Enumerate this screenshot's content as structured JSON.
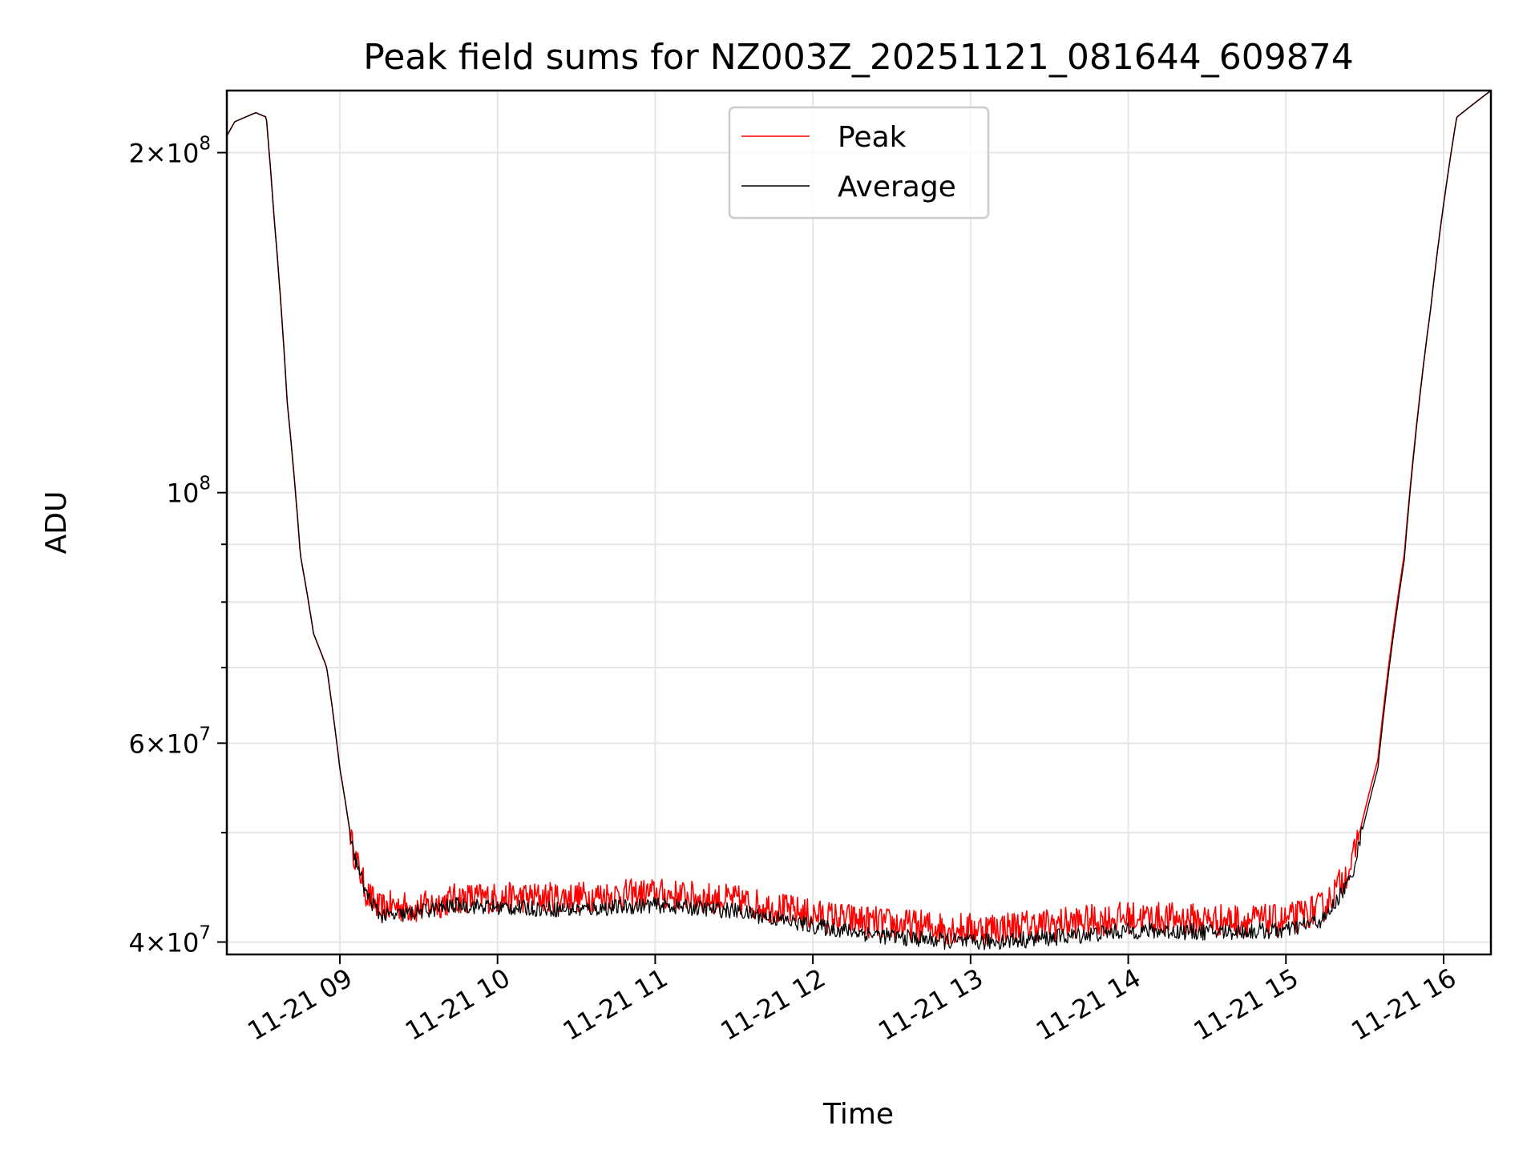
{
  "chart_data": {
    "type": "line",
    "title": "Peak field sums for NZ003Z_20251121_081644_609874",
    "xlabel": "Time",
    "ylabel": "ADU",
    "y_scale": "log",
    "grid": true,
    "legend_position": "upper center",
    "xlim": [
      "2025-11-21T08:17",
      "2025-11-21T16:18"
    ],
    "ylim": [
      39000000,
      227000000
    ],
    "x_ticks": [
      {
        "value": "2025-11-21T09:00",
        "label": "11-21 09"
      },
      {
        "value": "2025-11-21T10:00",
        "label": "11-21 10"
      },
      {
        "value": "2025-11-21T11:00",
        "label": "11-21 11"
      },
      {
        "value": "2025-11-21T12:00",
        "label": "11-21 12"
      },
      {
        "value": "2025-11-21T13:00",
        "label": "11-21 13"
      },
      {
        "value": "2025-11-21T14:00",
        "label": "11-21 14"
      },
      {
        "value": "2025-11-21T15:00",
        "label": "11-21 15"
      },
      {
        "value": "2025-11-21T16:00",
        "label": "11-21 16"
      }
    ],
    "y_ticks": [
      {
        "value": 40000000,
        "base": "4",
        "exp": "7",
        "mantissa": true
      },
      {
        "value": 60000000,
        "base": "6",
        "exp": "7",
        "mantissa": true
      },
      {
        "value": 100000000,
        "base": "10",
        "exp": "8",
        "mantissa": false
      },
      {
        "value": 200000000,
        "base": "2",
        "exp": "8",
        "mantissa": true
      }
    ],
    "y_minor_ticks": [
      50000000,
      70000000,
      80000000,
      90000000
    ],
    "series": [
      {
        "name": "Peak",
        "color": "#ff0000",
        "noise_amplitude": 1400000,
        "x": [
          "2025-11-21T08:17",
          "2025-11-21T08:20",
          "2025-11-21T08:28",
          "2025-11-21T08:32",
          "2025-11-21T08:35",
          "2025-11-21T08:40",
          "2025-11-21T08:45",
          "2025-11-21T08:50",
          "2025-11-21T08:55",
          "2025-11-21T09:00",
          "2025-11-21T09:05",
          "2025-11-21T09:10",
          "2025-11-21T09:15",
          "2025-11-21T09:20",
          "2025-11-21T09:30",
          "2025-11-21T09:45",
          "2025-11-21T10:00",
          "2025-11-21T10:30",
          "2025-11-21T11:00",
          "2025-11-21T11:30",
          "2025-11-21T12:00",
          "2025-11-21T12:30",
          "2025-11-21T13:00",
          "2025-11-21T13:30",
          "2025-11-21T14:00",
          "2025-11-21T14:30",
          "2025-11-21T15:00",
          "2025-11-21T15:15",
          "2025-11-21T15:25",
          "2025-11-21T15:35",
          "2025-11-21T15:45",
          "2025-11-21T15:55",
          "2025-11-21T16:05",
          "2025-11-21T16:18"
        ],
        "values": [
          207000000,
          213000000,
          217000000,
          215000000,
          175000000,
          120000000,
          88000000,
          75000000,
          70000000,
          57000000,
          48000000,
          44000000,
          42500000,
          42800000,
          42600000,
          43500000,
          43500000,
          43600000,
          43900000,
          43300000,
          42000000,
          41200000,
          40800000,
          41200000,
          41800000,
          41600000,
          41500000,
          42800000,
          46500000,
          58000000,
          88000000,
          145000000,
          215000000,
          227000000
        ]
      },
      {
        "name": "Average",
        "color": "#000000",
        "noise_amplitude": 700000,
        "x": [
          "2025-11-21T08:17",
          "2025-11-21T08:20",
          "2025-11-21T08:28",
          "2025-11-21T08:32",
          "2025-11-21T08:35",
          "2025-11-21T08:40",
          "2025-11-21T08:45",
          "2025-11-21T08:50",
          "2025-11-21T08:55",
          "2025-11-21T09:00",
          "2025-11-21T09:05",
          "2025-11-21T09:10",
          "2025-11-21T09:15",
          "2025-11-21T09:20",
          "2025-11-21T09:30",
          "2025-11-21T09:45",
          "2025-11-21T10:00",
          "2025-11-21T10:30",
          "2025-11-21T11:00",
          "2025-11-21T11:30",
          "2025-11-21T12:00",
          "2025-11-21T12:30",
          "2025-11-21T13:00",
          "2025-11-21T13:30",
          "2025-11-21T14:00",
          "2025-11-21T14:30",
          "2025-11-21T15:00",
          "2025-11-21T15:15",
          "2025-11-21T15:25",
          "2025-11-21T15:35",
          "2025-11-21T15:45",
          "2025-11-21T15:55",
          "2025-11-21T16:05",
          "2025-11-21T16:18"
        ],
        "values": [
          207000000,
          213000000,
          217000000,
          215000000,
          175000000,
          120000000,
          88000000,
          75000000,
          70000000,
          57000000,
          48000000,
          44000000,
          42200000,
          42000000,
          42400000,
          43000000,
          42800000,
          42600000,
          43000000,
          42500000,
          41200000,
          40300000,
          39800000,
          40200000,
          40800000,
          40700000,
          40800000,
          41800000,
          45500000,
          57000000,
          87000000,
          145000000,
          215000000,
          227000000
        ]
      }
    ]
  }
}
